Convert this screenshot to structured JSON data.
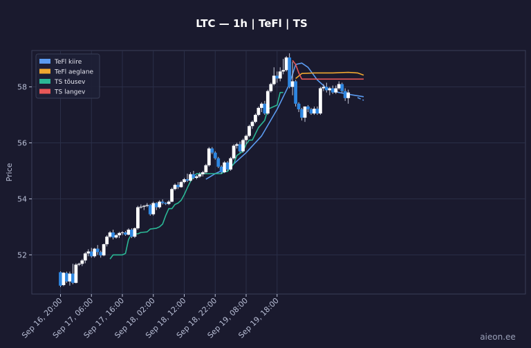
{
  "chart_data": {
    "type": "candlestick",
    "title": "LTC — 1h  |  TeFl  |  TS",
    "ylabel": "Price",
    "ylim": [
      50.6,
      59.3
    ],
    "yticks": [
      52,
      54,
      56,
      58
    ],
    "xticks": [
      "Sep 16, 20:00",
      "Sep 17, 06:00",
      "Sep 17, 16:00",
      "Sep 18, 02:00",
      "Sep 18, 12:00",
      "Sep 18, 22:00",
      "Sep 19, 08:00",
      "Sep 19, 18:00"
    ],
    "x_start": "Sep 16, 20:00",
    "x_step": "1h",
    "grid": true,
    "legend_position": "top-left",
    "legend": [
      {
        "label": "TeFl kiire",
        "color": "#5b9bf0"
      },
      {
        "label": "TeFl aeglane",
        "color": "#f0a830"
      },
      {
        "label": "TS tõusev",
        "color": "#2bb896"
      },
      {
        "label": "TS langev",
        "color": "#e85858"
      }
    ],
    "candle_colors": {
      "up": "#ffffff",
      "down": "#2e86e0"
    },
    "candles": [
      [
        51.38,
        51.41,
        50.85,
        50.9
      ],
      [
        50.92,
        51.38,
        50.88,
        51.36
      ],
      [
        51.35,
        51.4,
        51.0,
        51.05
      ],
      [
        51.05,
        51.4,
        50.9,
        51.33
      ],
      [
        51.33,
        51.68,
        50.95,
        51.0
      ],
      [
        51.0,
        51.7,
        50.98,
        51.65
      ],
      [
        51.65,
        51.72,
        51.6,
        51.68
      ],
      [
        51.68,
        51.85,
        51.6,
        51.8
      ],
      [
        51.8,
        52.1,
        51.7,
        52.05
      ],
      [
        52.05,
        52.2,
        51.95,
        52.12
      ],
      [
        52.12,
        52.25,
        51.9,
        51.95
      ],
      [
        51.95,
        52.25,
        51.9,
        52.22
      ],
      [
        52.22,
        52.35,
        52.0,
        52.1
      ],
      [
        52.1,
        52.15,
        51.9,
        51.98
      ],
      [
        51.98,
        52.4,
        51.95,
        52.38
      ],
      [
        52.38,
        52.7,
        52.3,
        52.65
      ],
      [
        52.65,
        52.85,
        52.6,
        52.8
      ],
      [
        52.8,
        52.9,
        52.55,
        52.62
      ],
      [
        52.62,
        52.75,
        52.58,
        52.7
      ],
      [
        52.7,
        52.82,
        52.6,
        52.78
      ],
      [
        52.78,
        52.85,
        52.7,
        52.8
      ],
      [
        52.8,
        52.85,
        52.68,
        52.72
      ],
      [
        52.72,
        52.95,
        52.7,
        52.9
      ],
      [
        52.9,
        52.95,
        52.6,
        52.65
      ],
      [
        52.65,
        52.98,
        52.6,
        52.95
      ],
      [
        52.95,
        53.75,
        52.9,
        53.7
      ],
      [
        53.7,
        53.8,
        53.65,
        53.72
      ],
      [
        53.72,
        53.78,
        53.6,
        53.75
      ],
      [
        53.75,
        53.85,
        53.7,
        53.78
      ],
      [
        53.78,
        53.82,
        53.4,
        53.45
      ],
      [
        53.45,
        53.9,
        53.4,
        53.85
      ],
      [
        53.85,
        53.88,
        53.6,
        53.7
      ],
      [
        53.7,
        53.95,
        53.65,
        53.9
      ],
      [
        53.9,
        53.98,
        53.8,
        53.85
      ],
      [
        53.85,
        53.88,
        53.78,
        53.82
      ],
      [
        53.82,
        53.95,
        53.78,
        53.9
      ],
      [
        53.9,
        54.4,
        53.88,
        54.35
      ],
      [
        54.35,
        54.55,
        54.3,
        54.5
      ],
      [
        54.5,
        54.6,
        54.35,
        54.42
      ],
      [
        54.42,
        54.65,
        54.4,
        54.6
      ],
      [
        54.6,
        54.75,
        54.55,
        54.7
      ],
      [
        54.7,
        54.9,
        54.6,
        54.65
      ],
      [
        54.65,
        54.95,
        54.62,
        54.88
      ],
      [
        54.88,
        55.0,
        54.7,
        54.75
      ],
      [
        54.75,
        54.85,
        54.7,
        54.8
      ],
      [
        54.8,
        54.95,
        54.75,
        54.88
      ],
      [
        54.88,
        55.0,
        54.8,
        54.95
      ],
      [
        54.95,
        55.25,
        54.9,
        55.2
      ],
      [
        55.2,
        55.85,
        55.15,
        55.8
      ],
      [
        55.8,
        55.85,
        55.6,
        55.65
      ],
      [
        55.65,
        55.7,
        55.4,
        55.45
      ],
      [
        55.45,
        55.5,
        55.1,
        55.15
      ],
      [
        55.15,
        55.2,
        54.9,
        54.95
      ],
      [
        54.95,
        55.35,
        54.92,
        55.3
      ],
      [
        55.3,
        55.35,
        55.0,
        55.05
      ],
      [
        55.05,
        55.5,
        55.0,
        55.45
      ],
      [
        55.45,
        55.95,
        55.4,
        55.9
      ],
      [
        55.9,
        56.0,
        55.8,
        55.95
      ],
      [
        55.95,
        56.05,
        55.65,
        55.7
      ],
      [
        55.7,
        56.15,
        55.65,
        56.1
      ],
      [
        56.1,
        56.3,
        55.95,
        56.25
      ],
      [
        56.25,
        56.65,
        56.2,
        56.6
      ],
      [
        56.6,
        56.8,
        56.5,
        56.75
      ],
      [
        56.75,
        57.05,
        56.7,
        57.0
      ],
      [
        57.0,
        57.3,
        56.95,
        57.25
      ],
      [
        57.25,
        57.45,
        57.1,
        57.4
      ],
      [
        57.4,
        57.5,
        57.0,
        57.05
      ],
      [
        57.05,
        57.9,
        57.0,
        57.85
      ],
      [
        57.85,
        58.15,
        57.8,
        58.1
      ],
      [
        58.1,
        58.7,
        58.05,
        58.4
      ],
      [
        58.4,
        58.55,
        58.15,
        58.3
      ],
      [
        58.3,
        58.7,
        58.2,
        58.55
      ],
      [
        58.55,
        59.0,
        58.45,
        58.6
      ],
      [
        58.6,
        59.1,
        58.55,
        59.05
      ],
      [
        59.05,
        59.2,
        57.95,
        58.0
      ],
      [
        58.0,
        58.9,
        57.7,
        58.2
      ],
      [
        58.2,
        58.25,
        57.3,
        57.4
      ],
      [
        57.4,
        57.45,
        57.1,
        57.2
      ],
      [
        57.2,
        57.25,
        56.8,
        56.9
      ],
      [
        56.9,
        57.3,
        56.75,
        57.3
      ],
      [
        57.3,
        57.35,
        57.1,
        57.2
      ],
      [
        57.2,
        57.25,
        57.0,
        57.05
      ],
      [
        57.05,
        57.3,
        57.0,
        57.22
      ],
      [
        57.22,
        57.3,
        57.0,
        57.05
      ],
      [
        57.05,
        58.0,
        57.0,
        57.95
      ],
      [
        57.95,
        58.1,
        57.85,
        58.0
      ],
      [
        58.0,
        58.15,
        57.8,
        57.88
      ],
      [
        57.88,
        58.0,
        57.7,
        57.95
      ],
      [
        57.95,
        58.05,
        57.75,
        57.8
      ],
      [
        57.8,
        58.05,
        57.75,
        57.95
      ],
      [
        57.95,
        58.2,
        57.9,
        58.1
      ],
      [
        58.1,
        58.15,
        57.8,
        57.85
      ],
      [
        57.85,
        57.95,
        57.5,
        57.6
      ],
      [
        57.6,
        57.9,
        57.4,
        57.8
      ]
    ],
    "series": [
      {
        "name": "TeFl kiire",
        "color": "#5b9bf0",
        "style": "solid",
        "points": [
          [
            47,
            54.7
          ],
          [
            50,
            54.9
          ],
          [
            55,
            55.15
          ],
          [
            60,
            55.65
          ],
          [
            65,
            56.25
          ],
          [
            70,
            57.2
          ],
          [
            74,
            58.1
          ],
          [
            76,
            58.8
          ],
          [
            78,
            58.85
          ],
          [
            80,
            58.7
          ],
          [
            83,
            58.25
          ],
          [
            86,
            57.95
          ],
          [
            90,
            57.8
          ],
          [
            95,
            57.7
          ],
          [
            98,
            57.65
          ]
        ]
      },
      {
        "name": "TeFl aeglane",
        "color": "#f0a830",
        "style": "solid",
        "points": [
          [
            76,
            58.3
          ],
          [
            78,
            58.48
          ],
          [
            82,
            58.5
          ],
          [
            88,
            58.5
          ],
          [
            93,
            58.52
          ],
          [
            96,
            58.5
          ],
          [
            98,
            58.42
          ]
        ]
      },
      {
        "name": "TS tõusev",
        "color": "#2bb896",
        "style": "solid",
        "points": [
          [
            16,
            51.85
          ],
          [
            17,
            52.0
          ],
          [
            20,
            52.0
          ],
          [
            21,
            52.05
          ],
          [
            22,
            52.55
          ],
          [
            23,
            52.75
          ],
          [
            25,
            52.75
          ],
          [
            26,
            52.8
          ],
          [
            28,
            52.82
          ],
          [
            29,
            52.92
          ],
          [
            31,
            52.95
          ],
          [
            32,
            53.0
          ],
          [
            33,
            53.1
          ],
          [
            34,
            53.4
          ],
          [
            35,
            53.65
          ],
          [
            36,
            53.65
          ],
          [
            37,
            53.8
          ],
          [
            38,
            53.85
          ],
          [
            39,
            53.95
          ],
          [
            40,
            54.15
          ],
          [
            41,
            54.4
          ],
          [
            42,
            54.62
          ],
          [
            43,
            54.8
          ],
          [
            44,
            54.9
          ],
          [
            52,
            54.9
          ],
          [
            53,
            54.98
          ],
          [
            54,
            54.98
          ],
          [
            56,
            55.25
          ],
          [
            57,
            55.55
          ],
          [
            59,
            55.7
          ],
          [
            60,
            55.95
          ],
          [
            61,
            56.1
          ],
          [
            62,
            56.1
          ],
          [
            64,
            56.55
          ],
          [
            66,
            56.8
          ],
          [
            67,
            57.2
          ],
          [
            68,
            57.25
          ],
          [
            70,
            57.35
          ],
          [
            71,
            57.8
          ],
          [
            72,
            57.8
          ]
        ]
      },
      {
        "name": "TS langev",
        "color": "#e85858",
        "style": "solid",
        "points": [
          [
            75,
            58.95
          ],
          [
            76,
            58.8
          ],
          [
            77,
            58.5
          ],
          [
            78,
            58.28
          ],
          [
            82,
            58.28
          ],
          [
            88,
            58.28
          ],
          [
            93,
            58.28
          ],
          [
            98,
            58.28
          ]
        ]
      },
      {
        "name": "TeFl kiire projection",
        "color": "#5b9bf0",
        "style": "dashed",
        "points": [
          [
            96,
            57.62
          ],
          [
            98,
            57.52
          ]
        ]
      }
    ]
  },
  "watermark": "aieon.ee"
}
